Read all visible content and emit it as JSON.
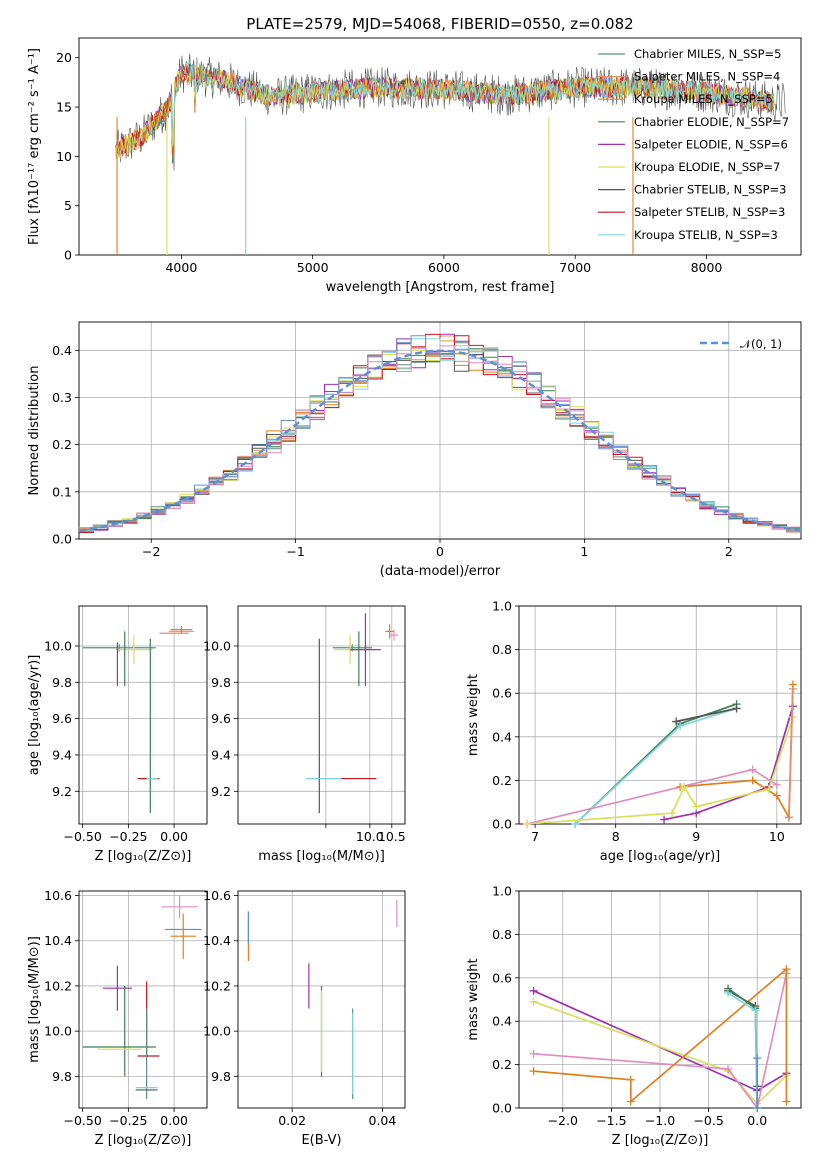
{
  "figure": {
    "title": "PLATE=2579, MJD=54068, FIBERID=0550, z=0.082"
  },
  "chart_data": [
    {
      "id": "spectrum",
      "type": "line",
      "xlabel": "wavelength [Angstrom, rest frame]",
      "ylabel": "Flux [fλ10⁻¹⁷ erg cm⁻² s⁻¹ A⁻¹]",
      "xlim": [
        3220,
        8720
      ],
      "ylim": [
        0,
        22
      ],
      "xticks": [
        4000,
        5000,
        6000,
        7000,
        8000
      ],
      "yticks": [
        0,
        5,
        10,
        15,
        20
      ],
      "grid": false,
      "legend_position": "top-right",
      "series": [
        {
          "name": "Chabrier MILES, N_SSP=5",
          "color": "#5f8f82"
        },
        {
          "name": "Salpeter MILES, N_SSP=4",
          "color": "#e08e6f"
        },
        {
          "name": "Kroupa MILES, N_SSP=5",
          "color": "#e0801f"
        },
        {
          "name": "Chabrier ELODIE, N_SSP=7",
          "color": "#3f7f55"
        },
        {
          "name": "Salpeter ELODIE, N_SSP=6",
          "color": "#9b30b0"
        },
        {
          "name": "Kroupa ELODIE, N_SSP=7",
          "color": "#d6e05a"
        },
        {
          "name": "Chabrier STELIB, N_SSP=3",
          "color": "#555555"
        },
        {
          "name": "Salpeter STELIB, N_SSP=3",
          "color": "#c8141e"
        },
        {
          "name": "Kroupa STELIB, N_SSP=3",
          "color": "#7fd6da"
        }
      ],
      "continuum": [
        [
          3500,
          10.5
        ],
        [
          3700,
          12
        ],
        [
          3900,
          15
        ],
        [
          4000,
          18.5
        ],
        [
          4300,
          17.8
        ],
        [
          4700,
          16
        ],
        [
          5000,
          16.5
        ],
        [
          5500,
          17
        ],
        [
          6000,
          16.8
        ],
        [
          6500,
          16.2
        ],
        [
          7000,
          17
        ],
        [
          7500,
          17
        ],
        [
          8000,
          16.5
        ],
        [
          8500,
          15.5
        ]
      ]
    },
    {
      "id": "residuals",
      "type": "line",
      "xlabel": "(data-model)/error",
      "ylabel": "Normed distribution",
      "xlim": [
        -2.5,
        2.5
      ],
      "ylim": [
        0,
        0.46
      ],
      "xticks": [
        -2,
        -1,
        0,
        1,
        2
      ],
      "yticks": [
        0.0,
        0.1,
        0.2,
        0.3,
        0.4
      ],
      "grid": true,
      "legend_position": "top-right",
      "legend": [
        {
          "name": "𝒩(0, 1)",
          "color": "#5b8fd6",
          "style": "dashed"
        }
      ],
      "histogram": {
        "bin_width": 0.1,
        "mean_curve": "N(0,1)",
        "series_colors": [
          "#5f8f82",
          "#e08e6f",
          "#e0801f",
          "#3f7f55",
          "#9b30b0",
          "#d6e05a",
          "#555555",
          "#c8141e",
          "#7fd6da",
          "#6d8fd6",
          "#e08ec0"
        ]
      }
    },
    {
      "id": "age_vs_Z",
      "type": "scatter",
      "xlabel": "Z [log₁₀(Z/Z⊙)]",
      "ylabel": "age  [log₁₀(age/yr)]",
      "xlim": [
        -0.52,
        0.18
      ],
      "ylim": [
        9.02,
        10.22
      ],
      "xticks": [
        -0.5,
        -0.25,
        0.0
      ],
      "xtick_labels": [
        "−0.50",
        "−0.25",
        "0.00"
      ],
      "yticks": [
        9.2,
        9.4,
        9.6,
        9.8,
        10.0
      ],
      "grid": true,
      "points": [
        {
          "x": -0.3,
          "y": 9.99,
          "xerr": 0.2,
          "yerr": 0.02,
          "color": "#5f8f82"
        },
        {
          "x": -0.22,
          "y": 9.98,
          "xerr": 0.1,
          "yerr": 0.08,
          "color": "#d6e05a"
        },
        {
          "x": -0.31,
          "y": 9.9,
          "xerr": 0.0,
          "yerr": 0.12,
          "color": "#9b30b0"
        },
        {
          "x": -0.27,
          "y": 9.93,
          "xerr": 0.0,
          "yerr": 0.15,
          "color": "#3f7f55"
        },
        {
          "x": -0.13,
          "y": 9.56,
          "xerr": 0.0,
          "yerr": 0.48,
          "color": "#3f7f55"
        },
        {
          "x": -0.14,
          "y": 9.27,
          "xerr": 0.06,
          "yerr": 0.0,
          "color": "#555555"
        },
        {
          "x": -0.14,
          "y": 9.27,
          "xerr": 0.06,
          "yerr": 0.0,
          "color": "#c8141e"
        },
        {
          "x": -0.12,
          "y": 9.27,
          "xerr": 0.03,
          "yerr": 0.0,
          "color": "#7fd6da"
        },
        {
          "x": 0.04,
          "y": 10.08,
          "xerr": 0.07,
          "yerr": 0.0,
          "color": "#e08ec0"
        },
        {
          "x": 0.04,
          "y": 10.09,
          "xerr": 0.06,
          "yerr": 0.02,
          "color": "#e0801f"
        },
        {
          "x": 0.0,
          "y": 10.07,
          "xerr": 0.08,
          "yerr": 0.0,
          "color": "#e08e6f"
        }
      ]
    },
    {
      "id": "age_vs_mass",
      "type": "scatter",
      "xlabel": "mass [log₁₀(M/M⊙)]",
      "ylabel": "",
      "xlim": [
        7.0,
        10.8
      ],
      "ylim": [
        9.02,
        10.22
      ],
      "xticks": [
        7.5,
        10.0,
        10.5
      ],
      "xtick_labels": [
        "",
        "10.0",
        "10.5"
      ],
      "xticks_real": [
        9.0,
        10.0,
        10.5
      ],
      "yticks": [
        9.2,
        9.4,
        9.6,
        9.8,
        10.0
      ],
      "grid": true,
      "points": [
        {
          "x": 9.6,
          "y": 9.99,
          "xerr": 0.45,
          "yerr": 0.02,
          "color": "#5f8f82"
        },
        {
          "x": 9.55,
          "y": 9.98,
          "xerr": 0.35,
          "yerr": 0.08,
          "color": "#d6e05a"
        },
        {
          "x": 9.9,
          "y": 9.98,
          "xerr": 0.35,
          "yerr": 0.2,
          "color": "#9b30b0"
        },
        {
          "x": 9.75,
          "y": 9.93,
          "xerr": 0.0,
          "yerr": 0.15,
          "color": "#3f7f55"
        },
        {
          "x": 8.85,
          "y": 9.56,
          "xerr": 0.0,
          "yerr": 0.48,
          "color": "#555555"
        },
        {
          "x": 9.35,
          "y": 9.27,
          "xerr": 0.8,
          "yerr": 0.0,
          "color": "#c8141e"
        },
        {
          "x": 8.95,
          "y": 9.27,
          "xerr": 0.4,
          "yerr": 0.0,
          "color": "#7fd6da"
        },
        {
          "x": 10.45,
          "y": 10.08,
          "xerr": 0.1,
          "yerr": 0.04,
          "color": "#e0801f"
        },
        {
          "x": 10.55,
          "y": 10.06,
          "xerr": 0.1,
          "yerr": 0.03,
          "color": "#e08ec0"
        }
      ]
    },
    {
      "id": "weight_vs_age",
      "type": "line",
      "xlabel": "age  [log₁₀(age/yr)]",
      "ylabel": "mass weight",
      "xlim": [
        6.8,
        10.3
      ],
      "ylim": [
        0.0,
        1.0
      ],
      "xticks": [
        7,
        8,
        9,
        10
      ],
      "yticks": [
        0.0,
        0.2,
        0.4,
        0.6,
        0.8,
        1.0
      ],
      "grid": true,
      "series": [
        {
          "color": "#3f7f55",
          "x": [
            7.5,
            8.8,
            9.5
          ],
          "y": [
            0.0,
            0.46,
            0.55
          ]
        },
        {
          "color": "#7fd6da",
          "x": [
            7.5,
            8.8,
            9.5
          ],
          "y": [
            0.0,
            0.45,
            0.53
          ]
        },
        {
          "color": "#555555",
          "x": [
            8.75,
            9.5
          ],
          "y": [
            0.47,
            0.53
          ]
        },
        {
          "color": "#9b30b0",
          "x": [
            8.6,
            9.0,
            9.9,
            10.2
          ],
          "y": [
            0.02,
            0.05,
            0.17,
            0.54
          ]
        },
        {
          "color": "#e08ec0",
          "x": [
            6.9,
            9.7,
            10.0
          ],
          "y": [
            0.0,
            0.25,
            0.18
          ]
        },
        {
          "color": "#e0801f",
          "x": [
            8.8,
            9.7,
            10.0,
            10.15,
            10.2
          ],
          "y": [
            0.17,
            0.2,
            0.13,
            0.03,
            0.64
          ]
        },
        {
          "color": "#d6e05a",
          "x": [
            6.9,
            8.7,
            8.85,
            9.0,
            9.9,
            10.2
          ],
          "y": [
            0.0,
            0.05,
            0.17,
            0.08,
            0.16,
            0.49
          ]
        },
        {
          "color": "#e08e6f",
          "x": [
            10.15,
            10.2
          ],
          "y": [
            0.03,
            0.62
          ]
        }
      ]
    },
    {
      "id": "mass_vs_Z",
      "type": "scatter",
      "xlabel": "Z [log₁₀(Z/Z⊙)]",
      "ylabel": "mass [log₁₀(M/M⊙)]",
      "xlim": [
        -0.52,
        0.18
      ],
      "ylim": [
        9.66,
        10.62
      ],
      "xticks": [
        -0.5,
        -0.25,
        0.0
      ],
      "xtick_labels": [
        "−0.50",
        "−0.25",
        "0.00"
      ],
      "yticks": [
        9.8,
        10.0,
        10.2,
        10.4,
        10.6
      ],
      "grid": true,
      "points": [
        {
          "x": 0.05,
          "y": 10.45,
          "xerr": 0.1,
          "yerr": 0.0,
          "color": "#5b8fd6"
        },
        {
          "x": 0.03,
          "y": 10.55,
          "xerr": 0.1,
          "yerr": 0.05,
          "color": "#e08ec0"
        },
        {
          "x": 0.05,
          "y": 10.42,
          "xerr": 0.07,
          "yerr": 0.1,
          "color": "#e0801f"
        },
        {
          "x": -0.31,
          "y": 10.19,
          "xerr": 0.08,
          "yerr": 0.1,
          "color": "#9b30b0"
        },
        {
          "x": -0.27,
          "y": 10.0,
          "xerr": 0.0,
          "yerr": 0.2,
          "color": "#3f7f55"
        },
        {
          "x": -0.15,
          "y": 10.05,
          "xerr": 0.0,
          "yerr": 0.17,
          "color": "#c8141e"
        },
        {
          "x": -0.3,
          "y": 9.93,
          "xerr": 0.2,
          "yerr": 0.0,
          "color": "#3f7f55"
        },
        {
          "x": -0.3,
          "y": 9.92,
          "xerr": 0.12,
          "yerr": 0.0,
          "color": "#d6e05a"
        },
        {
          "x": -0.14,
          "y": 9.89,
          "xerr": 0.06,
          "yerr": 0.0,
          "color": "#c8141e"
        },
        {
          "x": -0.15,
          "y": 9.9,
          "xerr": 0.0,
          "yerr": 0.2,
          "color": "#5f8f82"
        },
        {
          "x": -0.15,
          "y": 9.75,
          "xerr": 0.06,
          "yerr": 0.0,
          "color": "#7fd6da"
        },
        {
          "x": -0.15,
          "y": 9.74,
          "xerr": 0.06,
          "yerr": 0.0,
          "color": "#555555"
        }
      ]
    },
    {
      "id": "mass_vs_ebv",
      "type": "scatter",
      "xlabel": "E(B-V)",
      "ylabel": "",
      "xlim": [
        0.008,
        0.045
      ],
      "ylim": [
        9.66,
        10.62
      ],
      "xticks": [
        0.02,
        0.04
      ],
      "yticks": [
        9.8,
        10.0,
        10.2,
        10.4,
        10.6
      ],
      "grid": true,
      "points": [
        {
          "x": 0.0103,
          "y": 10.41,
          "xerr": 0.0,
          "yerr": 0.1,
          "color": "#e0801f"
        },
        {
          "x": 0.0103,
          "y": 10.46,
          "xerr": 0.0,
          "yerr": 0.07,
          "color": "#5b8fd6"
        },
        {
          "x": 0.0237,
          "y": 10.2,
          "xerr": 0.0,
          "yerr": 0.1,
          "color": "#9b30b0"
        },
        {
          "x": 0.0265,
          "y": 10.0,
          "xerr": 0.0,
          "yerr": 0.2,
          "color": "#3f7f55"
        },
        {
          "x": 0.0265,
          "y": 10.0,
          "xerr": 0.0,
          "yerr": 0.18,
          "color": "#d6e05a"
        },
        {
          "x": 0.0334,
          "y": 9.9,
          "xerr": 0.0,
          "yerr": 0.2,
          "color": "#5f8f82"
        },
        {
          "x": 0.0334,
          "y": 9.9,
          "xerr": 0.0,
          "yerr": 0.18,
          "color": "#7fd6da"
        },
        {
          "x": 0.0432,
          "y": 10.52,
          "xerr": 0.0,
          "yerr": 0.06,
          "color": "#e08ec0"
        }
      ]
    },
    {
      "id": "weight_vs_Z",
      "type": "line",
      "xlabel": "Z [log₁₀(Z/Z⊙)]",
      "ylabel": "mass weight",
      "xlim": [
        -2.45,
        0.45
      ],
      "ylim": [
        0.0,
        1.0
      ],
      "xticks": [
        -2.0,
        -1.5,
        -1.0,
        -0.5,
        0.0
      ],
      "xtick_labels": [
        "−2.0",
        "−1.5",
        "−1.0",
        "−0.5",
        "0.0"
      ],
      "yticks": [
        0.0,
        0.2,
        0.4,
        0.6,
        0.8,
        1.0
      ],
      "grid": true,
      "series": [
        {
          "color": "#9b30b0",
          "x": [
            -2.3,
            0.0,
            0.3
          ],
          "y": [
            0.54,
            0.08,
            0.16
          ]
        },
        {
          "color": "#d6e05a",
          "x": [
            -2.3,
            -0.3,
            0.0,
            0.3
          ],
          "y": [
            0.49,
            0.17,
            0.02,
            0.15
          ]
        },
        {
          "color": "#e08ec0",
          "x": [
            -2.3,
            -0.3,
            0.0,
            0.3
          ],
          "y": [
            0.25,
            0.18,
            0.0,
            0.62
          ]
        },
        {
          "color": "#e0801f",
          "x": [
            -2.3,
            -1.3,
            -1.3,
            0.3,
            0.3
          ],
          "y": [
            0.17,
            0.13,
            0.03,
            0.64,
            0.03
          ]
        },
        {
          "color": "#555555",
          "x": [
            -0.3,
            -0.02,
            0.0
          ],
          "y": [
            0.54,
            0.47,
            0.1
          ]
        },
        {
          "color": "#3f7f55",
          "x": [
            -0.3,
            -0.02,
            0.0
          ],
          "y": [
            0.55,
            0.46,
            0.0
          ]
        },
        {
          "color": "#7fd6da",
          "x": [
            -0.3,
            -0.02,
            0.0
          ],
          "y": [
            0.53,
            0.45,
            0.0
          ]
        },
        {
          "color": "#5b8fd6",
          "x": [
            0.0,
            0.0
          ],
          "y": [
            0.0,
            0.23
          ]
        }
      ]
    }
  ]
}
